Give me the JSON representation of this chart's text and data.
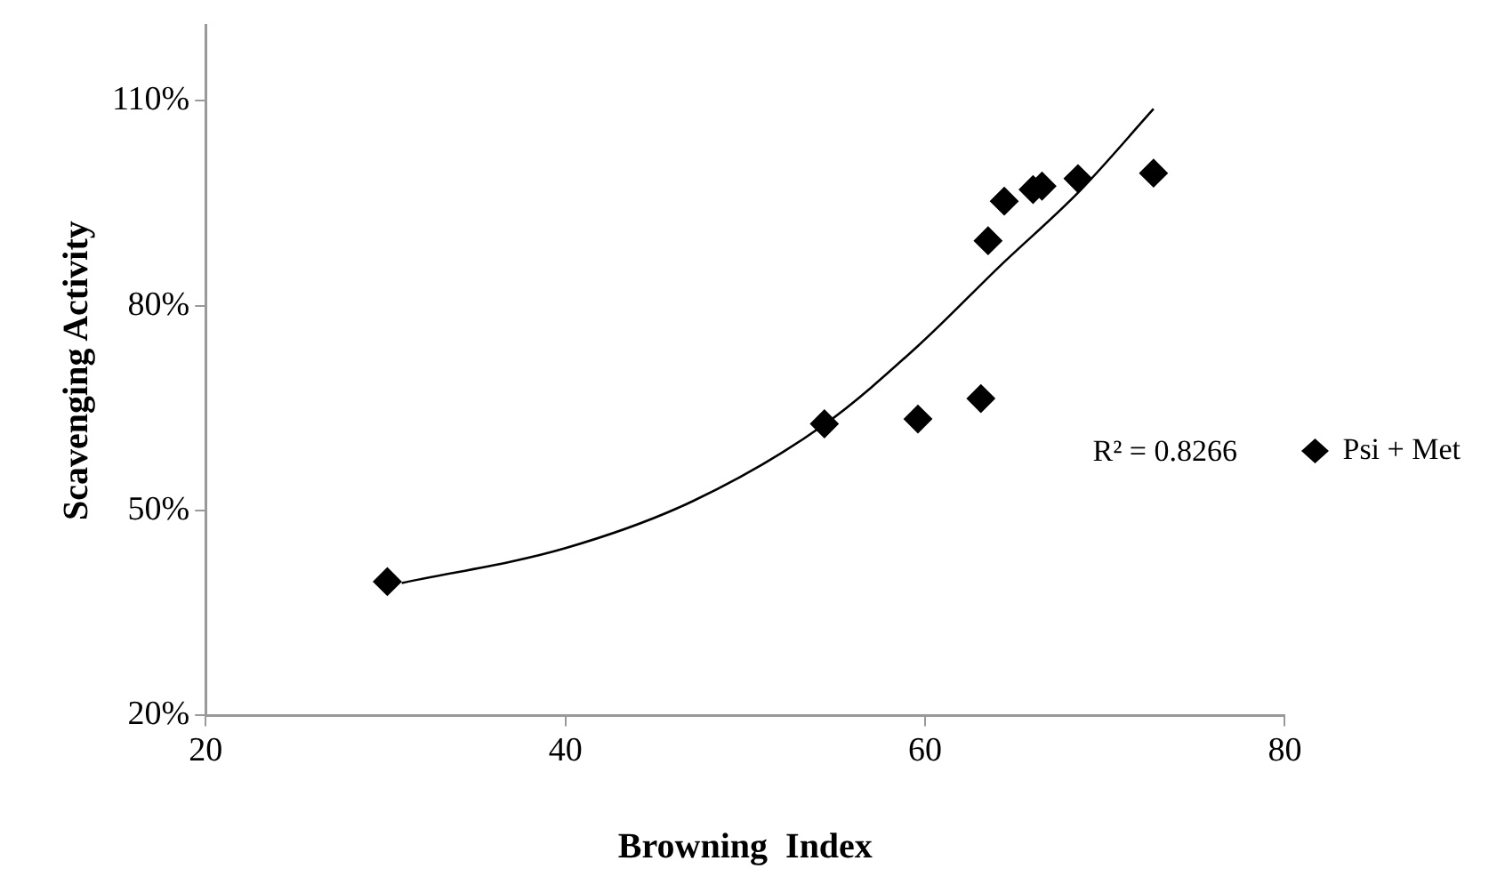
{
  "chart_data": {
    "type": "scatter",
    "xlabel": "Browning  Index",
    "ylabel": "Scavenging Activity",
    "xlim": [
      20,
      80
    ],
    "xticks": [
      20,
      40,
      60,
      80
    ],
    "ylim": [
      20,
      121
    ],
    "yticks": [
      {
        "value": 20,
        "label": "20%"
      },
      {
        "value": 50,
        "label": "50%"
      },
      {
        "value": 80,
        "label": "80%"
      },
      {
        "value": 110,
        "label": "110%"
      }
    ],
    "grid": false,
    "legend": "right",
    "marker": "diamond",
    "annotations": [
      "R² = 0.8266"
    ],
    "series": [
      {
        "name": "Psi + Met",
        "color": "#000000",
        "x": [
          30.1,
          54.4,
          59.6,
          63.1,
          63.5,
          64.4,
          66.0,
          66.5,
          68.5,
          72.7
        ],
        "values": [
          39.6,
          62.7,
          63.4,
          66.4,
          89.5,
          95.3,
          97.0,
          97.5,
          98.6,
          99.4
        ]
      },
      {
        "type": "line",
        "color": "#000000",
        "marker": "none",
        "line_style": "solid",
        "x": [
          30.9,
          40,
          47.1,
          54.4,
          59.6,
          64.2,
          68.6,
          72.7
        ],
        "values": [
          39.4,
          44.5,
          51.4,
          62.6,
          74.1,
          85.9,
          96.8,
          108.8
        ]
      }
    ]
  }
}
